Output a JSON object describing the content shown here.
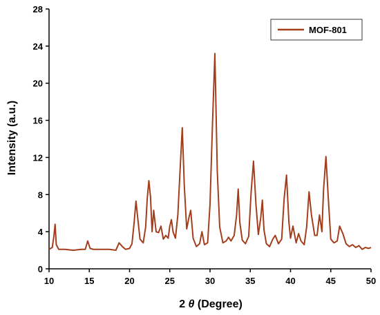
{
  "chart_data": {
    "type": "line",
    "title": "",
    "xlabel_prefix": "2 ",
    "xlabel_symbol": "θ",
    "xlabel_suffix": " (Degree)",
    "ylabel": "Intensity (a.u.)",
    "xlim": [
      10,
      50
    ],
    "ylim": [
      0,
      28
    ],
    "xticks": [
      10,
      15,
      20,
      25,
      30,
      35,
      40,
      45,
      50
    ],
    "yticks": [
      0,
      4,
      8,
      12,
      16,
      20,
      24,
      28
    ],
    "grid": false,
    "legend_position": "top-right",
    "line_color": "#a33d1a",
    "series": [
      {
        "name": "MOF-801",
        "x": [
          10,
          10.4,
          10.6,
          10.75,
          10.9,
          11.2,
          12,
          13,
          14,
          14.5,
          14.8,
          15.1,
          15.5,
          16.5,
          17.5,
          18.3,
          18.7,
          19.1,
          19.5,
          20,
          20.3,
          20.55,
          20.8,
          21,
          21.3,
          21.7,
          22,
          22.2,
          22.4,
          22.6,
          22.8,
          23.0,
          23.3,
          23.6,
          23.9,
          24.2,
          24.5,
          24.8,
          25.0,
          25.2,
          25.4,
          25.7,
          26.0,
          26.3,
          26.55,
          26.8,
          27.1,
          27.4,
          27.6,
          27.9,
          28.3,
          28.7,
          29.0,
          29.3,
          29.7,
          30.0,
          30.3,
          30.6,
          30.9,
          31.2,
          31.6,
          32.0,
          32.3,
          32.6,
          33.0,
          33.3,
          33.5,
          33.7,
          34.0,
          34.4,
          34.8,
          35.1,
          35.4,
          35.7,
          36.0,
          36.3,
          36.5,
          36.7,
          37.0,
          37.4,
          37.8,
          38.1,
          38.5,
          38.9,
          39.2,
          39.5,
          39.8,
          40.0,
          40.3,
          40.7,
          41.0,
          41.3,
          41.7,
          42.0,
          42.3,
          42.6,
          43.0,
          43.3,
          43.6,
          43.9,
          44.1,
          44.4,
          44.7,
          45.0,
          45.4,
          45.8,
          46.1,
          46.5,
          46.9,
          47.3,
          47.7,
          48.1,
          48.5,
          48.9,
          49.3,
          49.7,
          50
        ],
        "values": [
          2.1,
          2.3,
          3.5,
          4.8,
          2.6,
          2.1,
          2.1,
          2.0,
          2.1,
          2.1,
          3.0,
          2.2,
          2.1,
          2.1,
          2.1,
          2.0,
          2.8,
          2.4,
          2.1,
          2.2,
          2.7,
          4.8,
          7.3,
          5.6,
          3.2,
          2.8,
          4.5,
          7.6,
          9.5,
          7.8,
          4.0,
          6.3,
          4.0,
          3.9,
          4.6,
          3.2,
          3.6,
          3.3,
          4.6,
          5.3,
          4.0,
          3.3,
          5.8,
          11.0,
          15.2,
          9.0,
          4.3,
          5.6,
          6.3,
          3.3,
          2.4,
          2.7,
          4.0,
          2.6,
          2.8,
          7.0,
          15.5,
          23.2,
          10.5,
          4.5,
          2.8,
          3.0,
          3.4,
          3.0,
          3.6,
          5.8,
          8.6,
          5.0,
          3.1,
          2.7,
          3.5,
          8.2,
          11.6,
          7.0,
          3.7,
          5.5,
          7.4,
          4.2,
          2.7,
          2.4,
          3.2,
          3.6,
          2.7,
          3.2,
          7.5,
          10.1,
          5.0,
          3.3,
          4.6,
          2.8,
          3.8,
          3.0,
          2.6,
          4.5,
          8.3,
          5.8,
          3.6,
          3.6,
          5.8,
          4.0,
          8.5,
          12.1,
          7.5,
          3.2,
          2.8,
          3.0,
          4.6,
          3.8,
          2.7,
          2.4,
          2.6,
          2.3,
          2.5,
          2.1,
          2.3,
          2.2,
          2.3
        ]
      }
    ]
  }
}
